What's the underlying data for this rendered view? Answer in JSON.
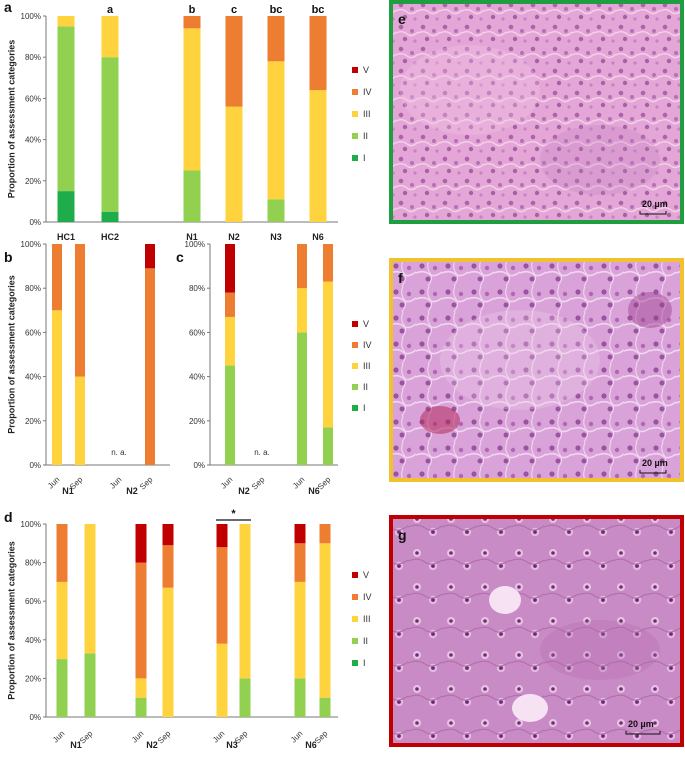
{
  "category_colors": {
    "V": "#c00000",
    "IV": "#ed7d31",
    "III": "#ffd33d",
    "II": "#92d050",
    "I": "#1fad4b"
  },
  "y_axis_label": "Proportion of assessment categories",
  "y_ticks": [
    "0%",
    "20%",
    "40%",
    "60%",
    "80%",
    "100%"
  ],
  "legend": [
    "V",
    "IV",
    "III",
    "II",
    "I"
  ],
  "micrographs": [
    {
      "label": "e",
      "border_color": "#1e9e3e",
      "scale_text": "20 µm"
    },
    {
      "label": "f",
      "border_color": "#f2c12e",
      "scale_text": "20 µm"
    },
    {
      "label": "g",
      "border_color": "#c00000",
      "scale_text": "20 µm"
    }
  ],
  "chart_data": [
    {
      "panel": "a",
      "type": "bar",
      "stacked": true,
      "ylim": [
        0,
        100
      ],
      "stack_order": [
        "I",
        "II",
        "III",
        "IV",
        "V"
      ],
      "bars": [
        {
          "label": "HC1",
          "sig": "",
          "values": {
            "I": 15,
            "II": 80,
            "III": 5,
            "IV": 0,
            "V": 0
          }
        },
        {
          "label": "HC2",
          "sig": "a",
          "values": {
            "I": 5,
            "II": 75,
            "III": 20,
            "IV": 0,
            "V": 0
          }
        },
        {
          "label": "N1",
          "sig": "b",
          "values": {
            "I": 0,
            "II": 25,
            "III": 69,
            "IV": 6,
            "V": 0
          }
        },
        {
          "label": "N2",
          "sig": "c",
          "values": {
            "I": 0,
            "II": 0,
            "III": 56,
            "IV": 44,
            "V": 0
          }
        },
        {
          "label": "N3",
          "sig": "bc",
          "values": {
            "I": 0,
            "II": 11,
            "III": 67,
            "IV": 22,
            "V": 0
          }
        },
        {
          "label": "N6",
          "sig": "bc",
          "values": {
            "I": 0,
            "II": 0,
            "III": 64,
            "IV": 36,
            "V": 0
          }
        }
      ]
    },
    {
      "panel": "b",
      "type": "bar",
      "stacked": true,
      "ylim": [
        0,
        100
      ],
      "groups": [
        {
          "label": "N1",
          "bars": [
            {
              "label": "Jun",
              "values": {
                "I": 0,
                "II": 0,
                "III": 70,
                "IV": 30,
                "V": 0
              }
            },
            {
              "label": "Sep",
              "values": {
                "I": 0,
                "II": 0,
                "III": 40,
                "IV": 60,
                "V": 0
              }
            }
          ]
        },
        {
          "label": "N2",
          "note": "n. a.",
          "bars": [
            {
              "label": "Jun",
              "values": null
            },
            {
              "label": "Sep",
              "values": {
                "I": 0,
                "II": 0,
                "III": 0,
                "IV": 89,
                "V": 11
              }
            }
          ]
        }
      ]
    },
    {
      "panel": "c",
      "type": "bar",
      "stacked": true,
      "ylim": [
        0,
        100
      ],
      "groups": [
        {
          "label": "N2",
          "note": "n. a.",
          "bars": [
            {
              "label": "Jun",
              "values": {
                "I": 0,
                "II": 45,
                "III": 22,
                "IV": 11,
                "V": 22
              }
            },
            {
              "label": "Sep",
              "values": null
            }
          ]
        },
        {
          "label": "N6",
          "bars": [
            {
              "label": "Jun",
              "values": {
                "I": 0,
                "II": 60,
                "III": 20,
                "IV": 20,
                "V": 0
              }
            },
            {
              "label": "Sep",
              "values": {
                "I": 0,
                "II": 17,
                "III": 66,
                "IV": 17,
                "V": 0
              }
            }
          ]
        }
      ]
    },
    {
      "panel": "d",
      "type": "bar",
      "stacked": true,
      "ylim": [
        0,
        100
      ],
      "significance": {
        "group": "N3",
        "text": "*"
      },
      "groups": [
        {
          "label": "N1",
          "bars": [
            {
              "label": "Jun",
              "values": {
                "I": 0,
                "II": 30,
                "III": 40,
                "IV": 30,
                "V": 0
              }
            },
            {
              "label": "Sep",
              "values": {
                "I": 0,
                "II": 33,
                "III": 67,
                "IV": 0,
                "V": 0
              }
            }
          ]
        },
        {
          "label": "N2",
          "bars": [
            {
              "label": "Jun",
              "values": {
                "I": 0,
                "II": 10,
                "III": 10,
                "IV": 60,
                "V": 20
              }
            },
            {
              "label": "Sep",
              "values": {
                "I": 0,
                "II": 0,
                "III": 67,
                "IV": 22,
                "V": 11
              }
            }
          ]
        },
        {
          "label": "N3",
          "bars": [
            {
              "label": "Jun",
              "values": {
                "I": 0,
                "II": 0,
                "III": 38,
                "IV": 50,
                "V": 12
              }
            },
            {
              "label": "Sep",
              "values": {
                "I": 0,
                "II": 20,
                "III": 80,
                "IV": 0,
                "V": 0
              }
            }
          ]
        },
        {
          "label": "N6",
          "bars": [
            {
              "label": "Jun",
              "values": {
                "I": 0,
                "II": 20,
                "III": 50,
                "IV": 20,
                "V": 10
              }
            },
            {
              "label": "Sep",
              "values": {
                "I": 0,
                "II": 10,
                "III": 80,
                "IV": 10,
                "V": 0
              }
            }
          ]
        }
      ]
    }
  ]
}
